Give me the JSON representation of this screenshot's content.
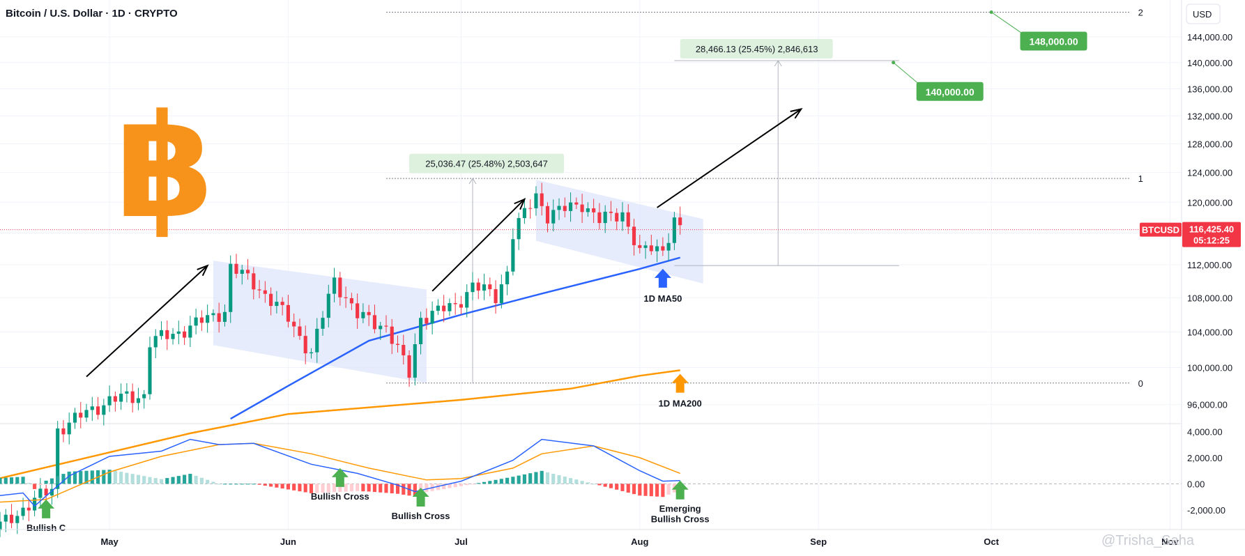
{
  "header": {
    "title": "Bitcoin / U.S. Dollar · 1D · CRYPTO"
  },
  "currency_button": "USD",
  "watermark": "@Trisha_Saha",
  "price_tag": {
    "symbol": "BTCUSD",
    "price": "116,425.40",
    "countdown": "05:12:25",
    "color": "#f23645"
  },
  "targets": [
    {
      "label": "148,000.00",
      "color": "#4caf50"
    },
    {
      "label": "140,000.00",
      "color": "#4caf50"
    }
  ],
  "measure_boxes": [
    {
      "label": "25,036.47 (25.48%) 2,503,647"
    },
    {
      "label": "28,466.13 (25.45%) 2,846,613"
    }
  ],
  "fib_labels": [
    "2",
    "1",
    "0"
  ],
  "annotations": {
    "ma50": "1D MA50",
    "ma200": "1D MA200",
    "cross1": "Bullish C",
    "cross2": "Bullish Cross",
    "cross3": "Bullish Cross",
    "cross4_line1": "Emerging",
    "cross4_line2": "Bullish Cross"
  },
  "colors": {
    "up": "#089981",
    "down": "#f23645",
    "ma50": "#2962ff",
    "ma200": "#ff9800",
    "macd_line": "#2962ff",
    "signal_line": "#ff9800",
    "hist_up_strong": "#26a69a",
    "hist_up_weak": "#b2dfdb",
    "hist_down_strong": "#ff5252",
    "hist_down_weak": "#ffcdd2",
    "channel": "#dde6fb",
    "bitcoin_logo": "#f7931a"
  },
  "chart_data": {
    "type": "candlestick",
    "title": "Bitcoin / U.S. Dollar · 1D · CRYPTO",
    "currency": "USD",
    "x_axis": {
      "ticks": [
        "May",
        "Jun",
        "Jul",
        "Aug",
        "Sep",
        "Oct",
        "Nov"
      ],
      "start": "2025-04-12",
      "end": "2025-11-03"
    },
    "y_axis": {
      "scale": "log",
      "ticks": [
        "96,000.00",
        "100,000.00",
        "104,000.00",
        "108,000.00",
        "112,000.00",
        "116,000.00",
        "120,000.00",
        "124,000.00",
        "128,000.00",
        "132,000.00",
        "136,000.00",
        "140,000.00",
        "144,000.00"
      ]
    },
    "macd_axis": {
      "ticks": [
        "4,000.00",
        "2,000.00",
        "0.00",
        "-2,000.00"
      ]
    },
    "close_anchors": [
      [
        "2025-04-12",
        84000
      ],
      [
        "2025-04-21",
        87500
      ],
      [
        "2025-04-22",
        93400
      ],
      [
        "2025-05-01",
        96500
      ],
      [
        "2025-05-07",
        97000
      ],
      [
        "2025-05-08",
        102900
      ],
      [
        "2025-05-13",
        104000
      ],
      [
        "2025-05-21",
        106500
      ],
      [
        "2025-05-22",
        111700
      ],
      [
        "2025-05-26",
        109800
      ],
      [
        "2025-06-01",
        105600
      ],
      [
        "2025-06-05",
        101500
      ],
      [
        "2025-06-09",
        110200
      ],
      [
        "2025-06-13",
        105900
      ],
      [
        "2025-06-18",
        104600
      ],
      [
        "2025-06-22",
        99300
      ],
      [
        "2025-06-24",
        105700
      ],
      [
        "2025-06-30",
        107100
      ],
      [
        "2025-07-03",
        109500
      ],
      [
        "2025-07-07",
        108200
      ],
      [
        "2025-07-09",
        111200
      ],
      [
        "2025-07-10",
        115900
      ],
      [
        "2025-07-14",
        121000
      ],
      [
        "2025-07-16",
        118300
      ],
      [
        "2025-07-22",
        119900
      ],
      [
        "2025-07-25",
        117600
      ],
      [
        "2025-07-29",
        118700
      ],
      [
        "2025-08-01",
        113300
      ],
      [
        "2025-08-03",
        114200
      ],
      [
        "2025-08-05",
        114000
      ],
      [
        "2025-08-07",
        117500
      ],
      [
        "2025-08-08",
        116400
      ]
    ],
    "ma50": [
      [
        "2025-05-22",
        94500
      ],
      [
        "2025-06-01",
        98000
      ],
      [
        "2025-06-15",
        103000
      ],
      [
        "2025-07-01",
        106000
      ],
      [
        "2025-07-15",
        108500
      ],
      [
        "2025-08-01",
        111500
      ],
      [
        "2025-08-08",
        112900
      ]
    ],
    "ma200": [
      [
        "2025-04-12",
        88500
      ],
      [
        "2025-05-15",
        93000
      ],
      [
        "2025-06-01",
        95000
      ],
      [
        "2025-07-01",
        96500
      ],
      [
        "2025-07-20",
        97700
      ],
      [
        "2025-08-01",
        99100
      ],
      [
        "2025-08-08",
        99700
      ]
    ],
    "macd": [
      [
        "2025-04-12",
        -900
      ],
      [
        "2025-04-16",
        -700
      ],
      [
        "2025-04-18",
        -1700
      ],
      [
        "2025-04-24",
        600
      ],
      [
        "2025-05-01",
        2100
      ],
      [
        "2025-05-10",
        2500
      ],
      [
        "2025-05-15",
        3400
      ],
      [
        "2025-05-20",
        3000
      ],
      [
        "2025-05-26",
        3100
      ],
      [
        "2025-06-05",
        1500
      ],
      [
        "2025-06-13",
        800
      ],
      [
        "2025-06-20",
        -100
      ],
      [
        "2025-06-23",
        -600
      ],
      [
        "2025-07-01",
        200
      ],
      [
        "2025-07-10",
        1800
      ],
      [
        "2025-07-15",
        3400
      ],
      [
        "2025-07-24",
        2900
      ],
      [
        "2025-08-01",
        1000
      ],
      [
        "2025-08-05",
        200
      ],
      [
        "2025-08-08",
        250
      ]
    ],
    "signal": [
      [
        "2025-04-12",
        -1400
      ],
      [
        "2025-04-20",
        -1200
      ],
      [
        "2025-05-01",
        900
      ],
      [
        "2025-05-10",
        2100
      ],
      [
        "2025-05-20",
        3000
      ],
      [
        "2025-05-26",
        3100
      ],
      [
        "2025-06-05",
        2300
      ],
      [
        "2025-06-15",
        1200
      ],
      [
        "2025-06-25",
        300
      ],
      [
        "2025-07-01",
        400
      ],
      [
        "2025-07-10",
        1200
      ],
      [
        "2025-07-15",
        2300
      ],
      [
        "2025-07-24",
        2900
      ],
      [
        "2025-08-01",
        2000
      ],
      [
        "2025-08-08",
        800
      ]
    ],
    "fib_levels": {
      "0": 98300,
      "1": 123200,
      "2": 148000
    },
    "targets": [
      148000,
      140000
    ],
    "current_price": 116425.4,
    "annotations": [
      "1D MA50",
      "1D MA200",
      "Bullish Cross",
      "Emerging Bullish Cross"
    ]
  }
}
